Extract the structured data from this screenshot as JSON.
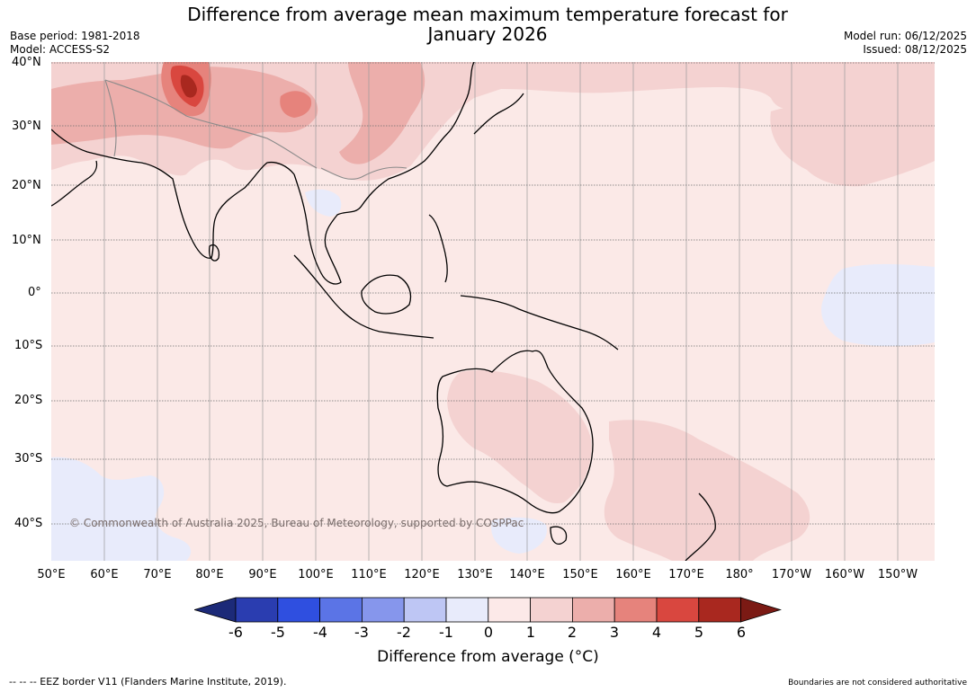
{
  "title_line1": "Difference from average mean maximum temperature forecast for",
  "title_line2": "January 2026",
  "meta_left": [
    "Base period: 1981-2018",
    "Model: ACCESS-S2"
  ],
  "meta_right": [
    "Model run: 06/12/2025",
    "Issued: 08/12/2025"
  ],
  "lat_labels": [
    "40°N",
    "30°N",
    "20°N",
    "10°N",
    "0°",
    "10°S",
    "20°S",
    "30°S",
    "40°S"
  ],
  "lon_labels": [
    "50°E",
    "60°E",
    "70°E",
    "80°E",
    "90°E",
    "100°E",
    "110°E",
    "120°E",
    "130°E",
    "140°E",
    "150°E",
    "160°E",
    "170°E",
    "180°",
    "170°W",
    "160°W",
    "150°W"
  ],
  "copyright": "© Commonwealth of Australia 2025, Bureau of Meteorology, supported by COSPPac",
  "colorbar": {
    "ticks": [
      "-6",
      "-5",
      "-4",
      "-3",
      "-2",
      "-1",
      "0",
      "1",
      "2",
      "3",
      "4",
      "5",
      "6"
    ],
    "colors": [
      "#1c2a78",
      "#2a3db0",
      "#2f4fe0",
      "#5b74e6",
      "#8696ec",
      "#bec6f4",
      "#e8ebfb",
      "#fce9e8",
      "#f4d2d1",
      "#ecaeab",
      "#e6837c",
      "#d9473f",
      "#a9281f",
      "#7b1a14"
    ],
    "title": "Difference from average (°C)"
  },
  "footer_left": "--  --  -- EEZ border V11 (Flanders Marine Institute, 2019).",
  "footer_right": "Boundaries are not considered authoritative"
}
